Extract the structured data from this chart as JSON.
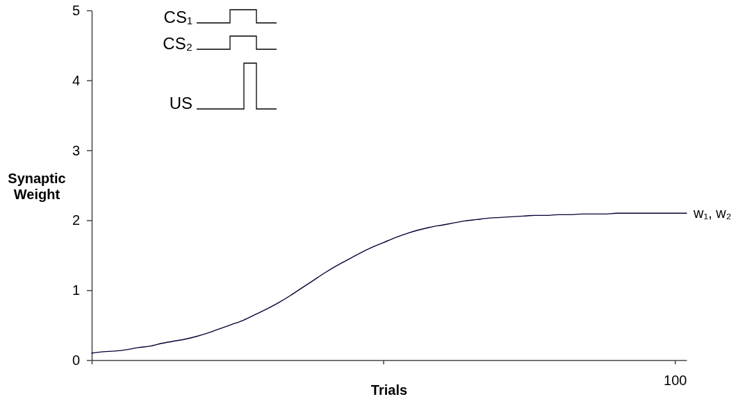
{
  "chart_data": {
    "type": "line",
    "xlabel": "Trials",
    "ylabel": "Synaptic Weight",
    "categories": [
      null,
      null,
      null,
      null,
      null,
      null,
      null,
      null,
      null,
      null,
      null,
      null,
      null,
      null,
      null,
      null,
      null,
      null,
      null,
      null,
      null,
      null,
      null,
      null,
      null,
      null,
      null,
      null,
      null,
      null,
      null,
      null,
      null,
      null,
      null,
      null,
      null,
      null,
      null,
      null,
      null,
      null,
      null,
      null,
      null,
      null,
      null,
      null,
      null,
      null,
      "100",
      null
    ],
    "ylim": [
      0,
      5
    ],
    "yticks": [
      0,
      1,
      2,
      3,
      4,
      5
    ],
    "annotations": [
      "CS₁",
      "CS₂",
      "US"
    ],
    "series": [
      {
        "name": "w₁, w₂",
        "color": "#000033",
        "values": [
          0.1,
          0.12,
          0.13,
          0.15,
          0.18,
          0.2,
          0.24,
          0.27,
          0.3,
          0.34,
          0.39,
          0.45,
          0.51,
          0.57,
          0.65,
          0.73,
          0.82,
          0.92,
          1.03,
          1.14,
          1.25,
          1.35,
          1.44,
          1.53,
          1.61,
          1.68,
          1.75,
          1.81,
          1.86,
          1.9,
          1.93,
          1.96,
          1.99,
          2.01,
          2.03,
          2.04,
          2.05,
          2.06,
          2.07,
          2.07,
          2.08,
          2.08,
          2.09,
          2.09,
          2.09,
          2.1,
          2.1,
          2.1,
          2.1,
          2.1,
          2.1,
          2.1
        ]
      }
    ]
  }
}
